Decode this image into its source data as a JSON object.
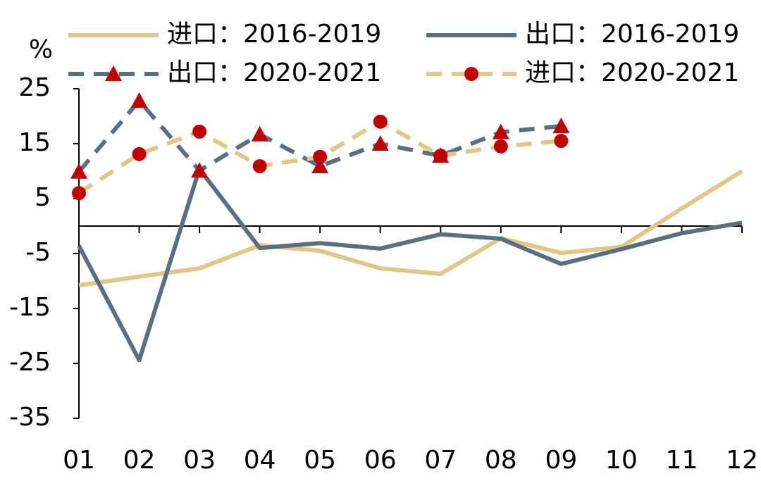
{
  "chart_data": {
    "type": "line",
    "y_unit_label": "%",
    "categories": [
      "01",
      "02",
      "03",
      "04",
      "05",
      "06",
      "07",
      "08",
      "09",
      "10",
      "11",
      "12"
    ],
    "ylim": [
      -35,
      25
    ],
    "yticks": [
      25,
      15,
      5,
      -5,
      -15,
      -25,
      -35
    ],
    "series": [
      {
        "name": "进口：2016-2019",
        "color": "#e2c685",
        "dash": false,
        "values": [
          -10.8,
          -9.2,
          -7.7,
          -3.5,
          -4.5,
          -7.7,
          -8.7,
          -2.2,
          -4.9,
          -3.8,
          3.2,
          10.0
        ]
      },
      {
        "name": "出口：2016-2019",
        "color": "#5b707f",
        "dash": false,
        "values": [
          -3.6,
          -24.4,
          10.4,
          -4.0,
          -3.1,
          -4.1,
          -1.5,
          -2.3,
          -6.9,
          -4.2,
          -1.3,
          0.6
        ]
      },
      {
        "name": "出口：2020-2021",
        "color": "#5b707f",
        "dash": true,
        "marker": "triangle",
        "marker_color": "#c00000",
        "values": [
          9.9,
          22.8,
          10.1,
          16.7,
          10.9,
          15.0,
          12.8,
          17.1,
          18.2,
          null,
          null,
          null
        ]
      },
      {
        "name": "进口：2020-2021",
        "color": "#e2c685",
        "dash": true,
        "marker": "circle",
        "marker_color": "#c00000",
        "values": [
          6.0,
          13.1,
          17.2,
          10.9,
          12.6,
          19.0,
          12.8,
          14.5,
          15.5,
          null,
          null,
          null
        ]
      }
    ]
  }
}
